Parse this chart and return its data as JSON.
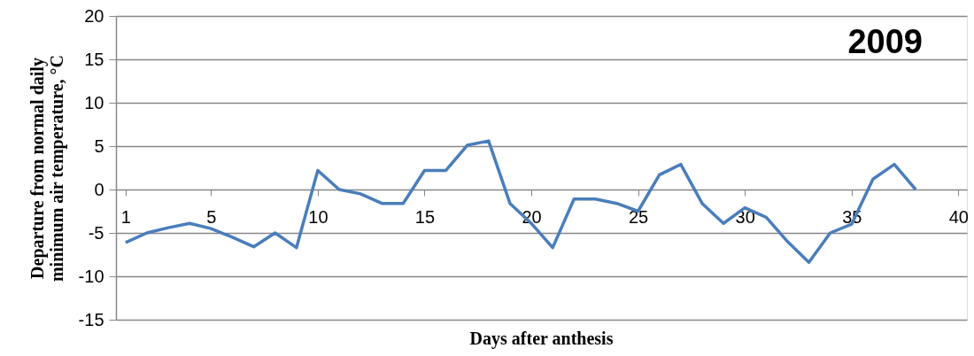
{
  "chart_data": {
    "type": "line",
    "title": "2009",
    "xlabel": "Days after anthesis",
    "ylabel": [
      "Departure from normal daily",
      "minimum air temperature, °C"
    ],
    "x": [
      1,
      2,
      3,
      4,
      5,
      6,
      7,
      8,
      9,
      10,
      11,
      12,
      13,
      14,
      15,
      16,
      17,
      18,
      19,
      20,
      21,
      22,
      23,
      24,
      25,
      26,
      27,
      28,
      29,
      30,
      31,
      32,
      33,
      34,
      35,
      36,
      37,
      38
    ],
    "series": [
      {
        "color": "#4a7ebb",
        "values": [
          -6.1,
          -5.0,
          -4.4,
          -3.9,
          -4.5,
          -5.5,
          -6.6,
          -5.0,
          -6.7,
          2.2,
          0,
          -0.5,
          -1.6,
          -1.6,
          2.2,
          2.2,
          5.1,
          5.6,
          -1.6,
          -3.9,
          -6.7,
          -1.1,
          -1.1,
          -1.6,
          -2.5,
          1.7,
          2.9,
          -1.6,
          -3.9,
          -2.1,
          -3.2,
          -6.0,
          -8.4,
          -5.0,
          -4.0,
          1.2,
          2.9,
          0
        ]
      }
    ],
    "xlim": [
      0.55,
      40.4
    ],
    "xticks": [
      1,
      5,
      10,
      15,
      20,
      25,
      30,
      35,
      40
    ],
    "ylim": [
      -15,
      20
    ],
    "yticks": [
      -15,
      -10,
      -5,
      0,
      5,
      10,
      15,
      20
    ],
    "grid": "y",
    "marker": "none",
    "line_style": "solid"
  }
}
